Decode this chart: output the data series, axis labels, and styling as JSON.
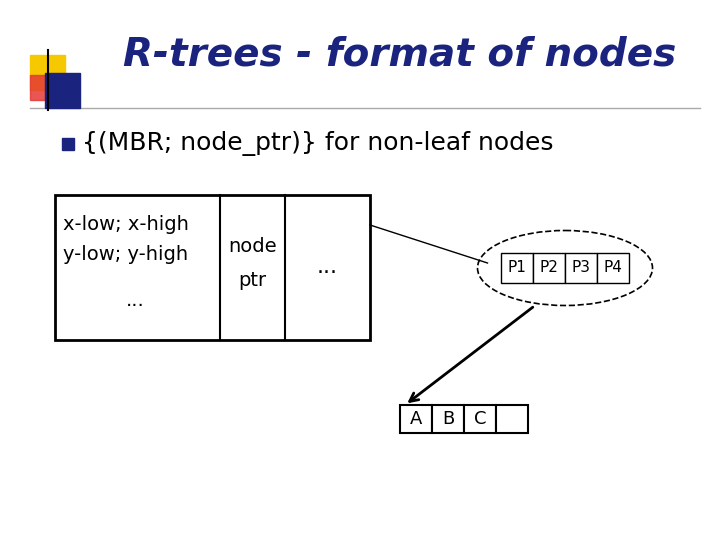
{
  "title": "R-trees - format of nodes",
  "title_color": "#1a237e",
  "title_fontsize": 28,
  "bullet_text": "{(MBR; node_ptr)} for non-leaf nodes",
  "bullet_color": "#000000",
  "bullet_fontsize": 18,
  "bullet_marker_color": "#1a237e",
  "bg_color": "#ffffff",
  "left_cell_line1": "x-low; x-high",
  "left_cell_line2": "y-low; y-high",
  "left_cell_line3": "...",
  "mid_cell_line1": "node",
  "mid_cell_line2": "ptr",
  "dots_text": "...",
  "p_labels": [
    "P1",
    "P2",
    "P3",
    "P4"
  ],
  "abc_labels": [
    "A",
    "B",
    "C",
    ""
  ],
  "logo_yellow": "#f5c800",
  "logo_blue": "#1a237e",
  "logo_red": "#e53935",
  "separator_color": "#aaaaaa",
  "line_color": "#888888",
  "arrow_color": "#000000",
  "table_font": 14,
  "p_font": 11,
  "abc_font": 13
}
